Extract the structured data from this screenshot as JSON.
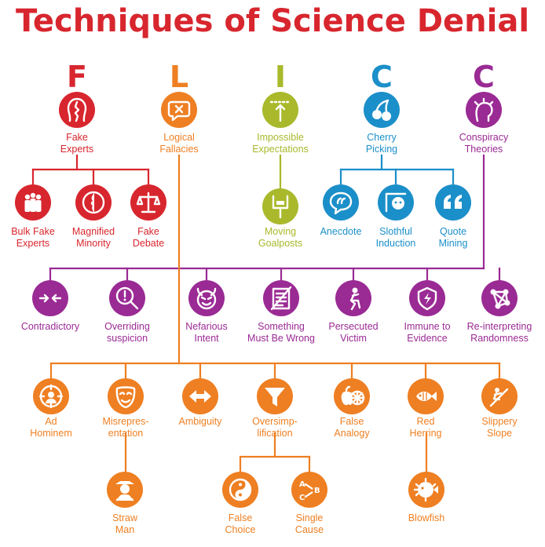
{
  "title": "Techniques of Science Denial",
  "colors": {
    "red": "#d8262e",
    "orange": "#ee7f22",
    "lime": "#a9b92b",
    "blue": "#1b8fc9",
    "purple": "#9a2a94"
  },
  "categories": [
    {
      "letter": "F",
      "label": "Fake\nExperts",
      "icon": "fake-experts-icon",
      "color": "red"
    },
    {
      "letter": "L",
      "label": "Logical\nFallacies",
      "icon": "logical-fallacies-icon",
      "color": "orange"
    },
    {
      "letter": "I",
      "label": "Impossible\nExpectations",
      "icon": "impossible-expectations-icon",
      "color": "lime"
    },
    {
      "letter": "C",
      "label": "Cherry\nPicking",
      "icon": "cherry-icon",
      "color": "blue"
    },
    {
      "letter": "C",
      "label": "Conspiracy\nTheories",
      "icon": "conspiracy-theories-icon",
      "color": "purple"
    }
  ],
  "fake_experts_children": [
    {
      "label": "Bulk Fake\nExperts",
      "icon": "crowd-icon"
    },
    {
      "label": "Magnified\nMinority",
      "icon": "magnified-minority-icon"
    },
    {
      "label": "Fake\nDebate",
      "icon": "scales-icon"
    }
  ],
  "impossible_expectations_children": [
    {
      "label": "Moving\nGoalposts",
      "icon": "goalposts-icon"
    }
  ],
  "cherry_picking_children": [
    {
      "label": "Anecdote",
      "icon": "speech-bubble-icon"
    },
    {
      "label": "Slothful\nInduction",
      "icon": "sloth-icon"
    },
    {
      "label": "Quote\nMining",
      "icon": "quote-icon"
    }
  ],
  "conspiracy_children": [
    {
      "label": "Contradictory",
      "icon": "contradictory-icon"
    },
    {
      "label": "Overriding\nsuspicion",
      "icon": "magnifier-icon"
    },
    {
      "label": "Nefarious\nIntent",
      "icon": "devil-icon"
    },
    {
      "label": "Something\nMust Be Wrong",
      "icon": "crossed-document-icon"
    },
    {
      "label": "Persecuted\nVictim",
      "icon": "kneeling-figure-icon"
    },
    {
      "label": "Immune to\nEvidence",
      "icon": "shield-icon"
    },
    {
      "label": "Re-interpreting\nRandomness",
      "icon": "network-icon"
    }
  ],
  "fallacy_children": [
    {
      "label": "Ad\nHominem",
      "icon": "target-head-icon"
    },
    {
      "label": "Misrepres-\nentation",
      "icon": "mask-icon"
    },
    {
      "label": "Ambiguity",
      "icon": "double-arrow-icon"
    },
    {
      "label": "Oversimp-\nlification",
      "icon": "funnel-icon"
    },
    {
      "label": "False\nAnalogy",
      "icon": "apple-orange-icon"
    },
    {
      "label": "Red\nHerring",
      "icon": "fish-icon"
    },
    {
      "label": "Slippery\nSlope",
      "icon": "slide-icon"
    }
  ],
  "fallacy_grandchildren": [
    {
      "label": "Straw\nMan",
      "icon": "scarecrow-icon",
      "parent": 1
    },
    {
      "label": "False\nChoice",
      "icon": "yin-yang-icon",
      "parent": 3
    },
    {
      "label": "Single\nCause",
      "icon": "single-cause-icon",
      "parent": 3
    },
    {
      "label": "Blowfish",
      "icon": "blowfish-icon",
      "parent": 5
    }
  ],
  "single_cause_glyphs": [
    "A",
    "B",
    "C"
  ]
}
